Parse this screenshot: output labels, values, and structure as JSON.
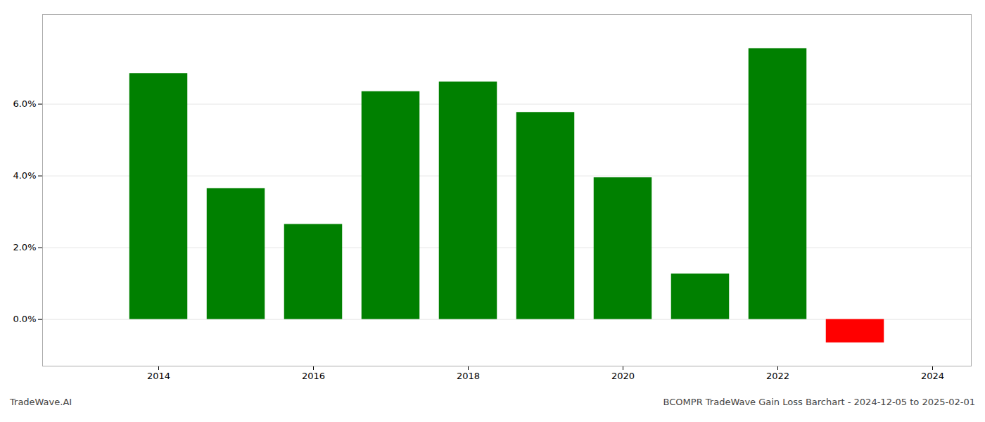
{
  "chart_data": {
    "type": "bar",
    "x": [
      2014,
      2015,
      2016,
      2017,
      2018,
      2019,
      2020,
      2021,
      2022,
      2023
    ],
    "values": [
      0.0685,
      0.0365,
      0.0265,
      0.0635,
      0.0662,
      0.0577,
      0.0395,
      0.0127,
      0.0755,
      -0.0065
    ],
    "colors": [
      "#008000",
      "#008000",
      "#008000",
      "#008000",
      "#008000",
      "#008000",
      "#008000",
      "#008000",
      "#008000",
      "#ff0000"
    ],
    "xlim": [
      2012.5,
      2024.5
    ],
    "xticks": [
      2014,
      2016,
      2018,
      2020,
      2022,
      2024
    ],
    "ylim": [
      -0.013,
      0.085
    ],
    "yticks": [
      {
        "value": 0.0,
        "label": "0.0%"
      },
      {
        "value": 0.02,
        "label": "2.0%"
      },
      {
        "value": 0.04,
        "label": "4.0%"
      },
      {
        "value": 0.06,
        "label": "6.0%"
      }
    ],
    "grid": true,
    "annotations": [
      "TradeWave.AI",
      "BCOMPR TradeWave Gain Loss Barchart - 2024-12-05 to 2025-02-01"
    ]
  }
}
